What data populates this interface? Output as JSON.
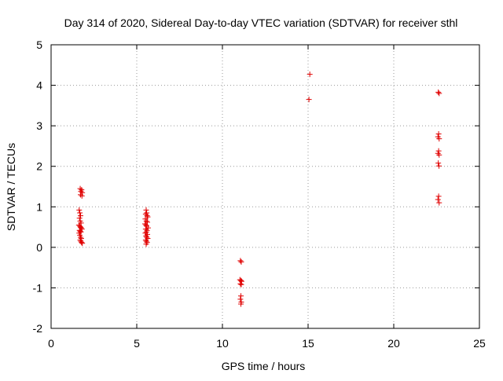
{
  "chart_data": {
    "type": "scatter",
    "title": "Day 314 of 2020, Sidereal Day-to-day VTEC variation (SDTVAR) for receiver sthl",
    "xlabel": "GPS time / hours",
    "ylabel": "SDTVAR / TECUs",
    "xlim": [
      0,
      25
    ],
    "ylim": [
      -2,
      5
    ],
    "xticks": [
      0,
      5,
      10,
      15,
      20,
      25
    ],
    "yticks": [
      -2,
      -1,
      0,
      1,
      2,
      3,
      4,
      5
    ],
    "xtick_labels": [
      "0",
      "5",
      "10",
      "15",
      "20",
      "25"
    ],
    "ytick_labels": [
      "-2",
      "-1",
      "0",
      "1",
      "2",
      "3",
      "4",
      "5"
    ],
    "grid": true,
    "marker": "+",
    "series": [
      {
        "name": "SDTVAR",
        "color": "#e00000",
        "points": [
          [
            1.7,
            1.45
          ],
          [
            1.78,
            1.42
          ],
          [
            1.74,
            1.38
          ],
          [
            1.82,
            1.35
          ],
          [
            1.72,
            1.3
          ],
          [
            1.8,
            1.27
          ],
          [
            1.64,
            0.92
          ],
          [
            1.68,
            0.85
          ],
          [
            1.72,
            0.78
          ],
          [
            1.66,
            0.72
          ],
          [
            1.7,
            0.65
          ],
          [
            1.75,
            0.6
          ],
          [
            1.62,
            0.55
          ],
          [
            1.68,
            0.52
          ],
          [
            1.72,
            0.5
          ],
          [
            1.76,
            0.48
          ],
          [
            1.8,
            0.45
          ],
          [
            1.66,
            0.42
          ],
          [
            1.7,
            0.4
          ],
          [
            1.74,
            0.38
          ],
          [
            1.64,
            0.35
          ],
          [
            1.68,
            0.3
          ],
          [
            1.72,
            0.25
          ],
          [
            1.76,
            0.22
          ],
          [
            1.7,
            0.18
          ],
          [
            1.74,
            0.15
          ],
          [
            1.78,
            0.12
          ],
          [
            1.82,
            0.1
          ],
          [
            5.55,
            0.92
          ],
          [
            5.58,
            0.85
          ],
          [
            5.52,
            0.82
          ],
          [
            5.6,
            0.78
          ],
          [
            5.64,
            0.75
          ],
          [
            5.5,
            0.7
          ],
          [
            5.56,
            0.65
          ],
          [
            5.62,
            0.62
          ],
          [
            5.48,
            0.58
          ],
          [
            5.54,
            0.55
          ],
          [
            5.58,
            0.52
          ],
          [
            5.66,
            0.48
          ],
          [
            5.52,
            0.45
          ],
          [
            5.6,
            0.42
          ],
          [
            5.56,
            0.38
          ],
          [
            5.5,
            0.35
          ],
          [
            5.62,
            0.32
          ],
          [
            5.54,
            0.28
          ],
          [
            5.58,
            0.25
          ],
          [
            5.64,
            0.22
          ],
          [
            5.52,
            0.18
          ],
          [
            5.56,
            0.15
          ],
          [
            5.6,
            0.12
          ],
          [
            5.55,
            0.08
          ],
          [
            11.05,
            -0.33
          ],
          [
            11.1,
            -0.36
          ],
          [
            11.02,
            -0.8
          ],
          [
            11.08,
            -0.82
          ],
          [
            11.12,
            -0.84
          ],
          [
            11.05,
            -0.9
          ],
          [
            11.1,
            -0.92
          ],
          [
            11.08,
            -1.2
          ],
          [
            11.05,
            -1.28
          ],
          [
            11.1,
            -1.35
          ],
          [
            11.08,
            -1.4
          ],
          [
            15.1,
            4.27
          ],
          [
            15.05,
            3.65
          ],
          [
            22.6,
            3.83
          ],
          [
            22.65,
            3.8
          ],
          [
            22.62,
            2.8
          ],
          [
            22.58,
            2.73
          ],
          [
            22.65,
            2.68
          ],
          [
            22.62,
            2.38
          ],
          [
            22.58,
            2.32
          ],
          [
            22.65,
            2.28
          ],
          [
            22.6,
            2.08
          ],
          [
            22.64,
            2.01
          ],
          [
            22.62,
            1.26
          ],
          [
            22.58,
            1.18
          ],
          [
            22.65,
            1.1
          ]
        ]
      }
    ]
  }
}
